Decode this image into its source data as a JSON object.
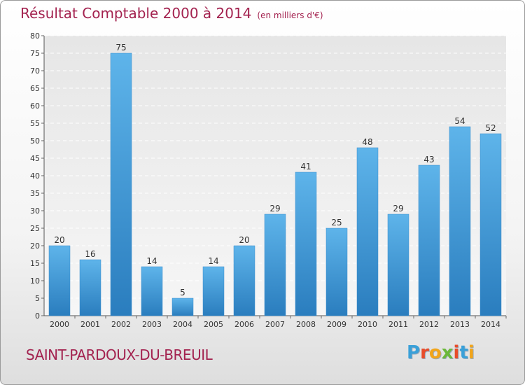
{
  "chart_data": {
    "type": "bar",
    "title": "Résultat Comptable 2000 à 2014",
    "unit": "(en milliers d'€)",
    "categories": [
      "2000",
      "2001",
      "2002",
      "2003",
      "2004",
      "2005",
      "2006",
      "2007",
      "2008",
      "2009",
      "2010",
      "2011",
      "2012",
      "2013",
      "2014"
    ],
    "values": [
      20,
      16,
      75,
      14,
      5,
      14,
      20,
      29,
      41,
      25,
      48,
      29,
      43,
      54,
      52
    ],
    "ylim": [
      0,
      80
    ],
    "yticks": [
      0,
      5,
      10,
      15,
      20,
      25,
      30,
      35,
      40,
      45,
      50,
      55,
      60,
      65,
      70,
      75,
      80
    ],
    "grid": true
  },
  "commune": "SAINT-PARDOUX-DU-BREUIL",
  "logo": {
    "letters": [
      "P",
      "r",
      "o",
      "x",
      "i",
      "t",
      "i"
    ],
    "colors": [
      "#3aa0d8",
      "#e84c2a",
      "#f2a51a",
      "#6bb83a",
      "#e84c2a",
      "#3aa0d8",
      "#f2a51a"
    ]
  }
}
